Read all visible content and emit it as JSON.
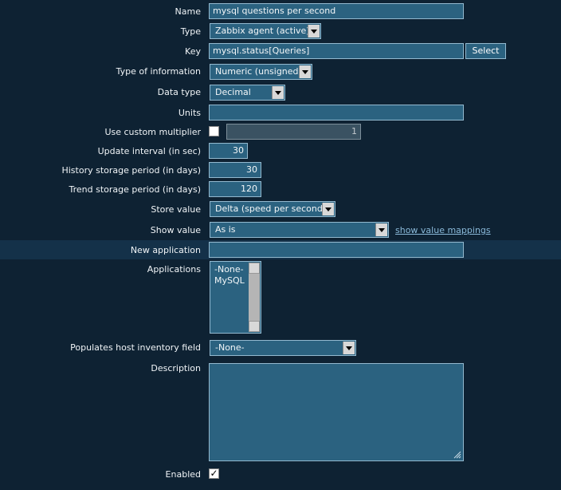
{
  "form": {
    "name": {
      "label": "Name",
      "value": "mysql questions per second"
    },
    "type": {
      "label": "Type",
      "value": "Zabbix agent (active)"
    },
    "key": {
      "label": "Key",
      "value": "mysql.status[Queries]",
      "button": "Select"
    },
    "type_of_information": {
      "label": "Type of information",
      "value": "Numeric (unsigned)"
    },
    "data_type": {
      "label": "Data type",
      "value": "Decimal"
    },
    "units": {
      "label": "Units",
      "value": ""
    },
    "custom_multiplier": {
      "label": "Use custom multiplier",
      "checked": false,
      "value": "1"
    },
    "update_interval": {
      "label": "Update interval (in sec)",
      "value": "30"
    },
    "history": {
      "label": "History storage period (in days)",
      "value": "30"
    },
    "trend": {
      "label": "Trend storage period (in days)",
      "value": "120"
    },
    "store_value": {
      "label": "Store value",
      "value": "Delta (speed per second)"
    },
    "show_value": {
      "label": "Show value",
      "value": "As is",
      "link": "show value mappings"
    },
    "new_application": {
      "label": "New application",
      "value": ""
    },
    "applications": {
      "label": "Applications",
      "options": [
        "-None-",
        "MySQL"
      ]
    },
    "inventory": {
      "label": "Populates host inventory field",
      "value": "-None-"
    },
    "description": {
      "label": "Description",
      "value": ""
    },
    "enabled": {
      "label": "Enabled",
      "checked": true,
      "mark": "✓"
    }
  }
}
